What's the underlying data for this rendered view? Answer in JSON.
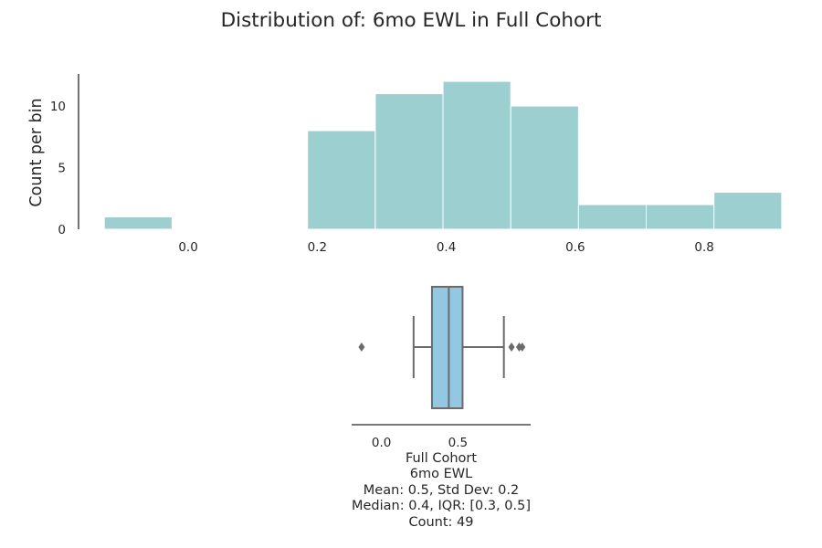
{
  "title": "Distribution of: 6mo EWL in Full Cohort",
  "chart_data": [
    {
      "type": "histogram",
      "ylabel": "Count per bin",
      "xlim": [
        -0.17,
        0.94
      ],
      "ylim": [
        0,
        12.6
      ],
      "bar_color": "#9ccfd0",
      "bins": [
        {
          "x0": -0.13,
          "x1": -0.025,
          "count": 1
        },
        {
          "x0": 0.185,
          "x1": 0.29,
          "count": 8
        },
        {
          "x0": 0.29,
          "x1": 0.395,
          "count": 11
        },
        {
          "x0": 0.395,
          "x1": 0.5,
          "count": 12
        },
        {
          "x0": 0.5,
          "x1": 0.605,
          "count": 10
        },
        {
          "x0": 0.605,
          "x1": 0.71,
          "count": 2
        },
        {
          "x0": 0.71,
          "x1": 0.815,
          "count": 2
        },
        {
          "x0": 0.815,
          "x1": 0.92,
          "count": 3
        }
      ],
      "xticks": [
        0.0,
        0.2,
        0.4,
        0.6,
        0.8
      ],
      "xtick_labels": [
        "0.0",
        "0.2",
        "0.4",
        "0.6",
        "0.8"
      ],
      "yticks": [
        0,
        5,
        10
      ],
      "ytick_labels": [
        "0",
        "5",
        "10"
      ]
    },
    {
      "type": "boxplot",
      "xlim": [
        -0.195,
        0.975
      ],
      "box_color": "#93c8e2",
      "line_color": "#6b6b6b",
      "whisker_low": 0.21,
      "q1": 0.33,
      "median": 0.44,
      "q3": 0.53,
      "whisker_high": 0.8,
      "outliers": [
        -0.13,
        0.85,
        0.9,
        0.92
      ],
      "xticks": [
        0.0,
        0.5
      ],
      "xtick_labels": [
        "0.0",
        "0.5"
      ]
    }
  ],
  "summary": {
    "group": "Full Cohort",
    "variable": "6mo EWL",
    "mean_std": "Mean: 0.5, Std Dev: 0.2",
    "median_iqr": "Median: 0.4, IQR: [0.3, 0.5]",
    "count": "Count: 49"
  }
}
